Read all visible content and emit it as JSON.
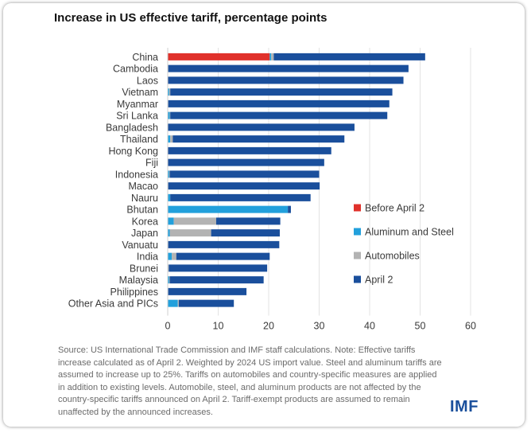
{
  "chart_data": {
    "type": "bar",
    "orientation": "horizontal",
    "stacked": true,
    "title": "Increase in US effective tariff, percentage points",
    "xlabel": "",
    "ylabel": "",
    "xlim": [
      0,
      60
    ],
    "xticks": [
      0,
      10,
      20,
      30,
      40,
      50,
      60
    ],
    "grid": true,
    "legend_position": "right",
    "categories": [
      "China",
      "Cambodia",
      "Laos",
      "Vietnam",
      "Myanmar",
      "Sri Lanka",
      "Bangladesh",
      "Thailand",
      "Hong Kong",
      "Fiji",
      "Indonesia",
      "Macao",
      "Nauru",
      "Bhutan",
      "Korea",
      "Japan",
      "Vanuatu",
      "India",
      "Brunei",
      "Malaysia",
      "Philippines",
      "Other Asia and PICs"
    ],
    "series": [
      {
        "name": "Before April 2",
        "color": "#e0312b",
        "values": [
          20.2,
          0,
          0,
          0,
          0,
          0,
          0,
          0,
          0,
          0,
          0,
          0,
          0,
          0,
          0,
          0,
          0,
          0,
          0,
          0,
          0,
          0
        ]
      },
      {
        "name": "Aluminum and Steel",
        "color": "#22a0dc",
        "values": [
          0.3,
          0.1,
          0,
          0.3,
          0.1,
          0.4,
          0,
          0.5,
          0,
          0,
          0.3,
          0.1,
          0.5,
          23.8,
          1.2,
          0.4,
          0.1,
          0.8,
          0.1,
          0.3,
          0.1,
          2.0
        ]
      },
      {
        "name": "Automobiles",
        "color": "#b3b3b3",
        "values": [
          0.5,
          0,
          0,
          0.2,
          0,
          0.1,
          0,
          0.5,
          0,
          0,
          0.1,
          0,
          0,
          0,
          8.4,
          8.2,
          0,
          0.9,
          0.1,
          0.1,
          0,
          0.2
        ]
      },
      {
        "name": "April 2",
        "color": "#1a4f9c",
        "values": [
          30.0,
          47.6,
          46.7,
          44.0,
          43.8,
          43.0,
          37.0,
          34.0,
          32.4,
          31.0,
          29.6,
          30.0,
          27.8,
          0.6,
          12.7,
          13.6,
          22.0,
          18.5,
          19.5,
          18.6,
          15.5,
          10.9
        ]
      }
    ],
    "legend": [
      "Before April 2",
      "Aluminum and Steel",
      "Automobiles",
      "April 2"
    ]
  },
  "source": "Source: US International Trade Commission and IMF staff calculations. Note: Effective tariffs increase calculated as of April 2. Weighted by 2024 US import value. Steel and aluminum tariffs are assumed to increase up to 25%. Tariffs on automobiles and country-specific measures are applied in addition to existing levels. Automobile, steel, and aluminum products are not affected by the country-specific tariffs announced on April 2. Tariff-exempt products are assumed to remain unaffected by the announced increases.",
  "logo": "IMF"
}
